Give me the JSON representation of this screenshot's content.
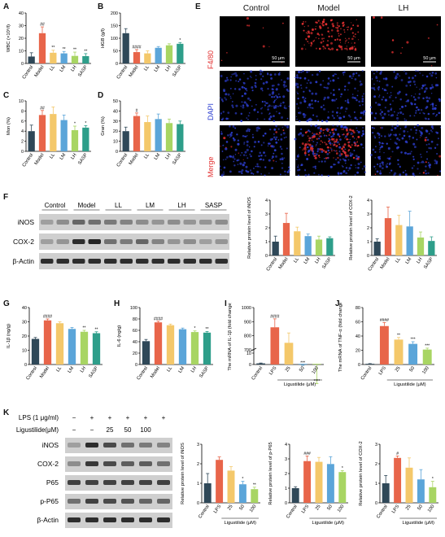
{
  "colors": {
    "control": "#2f4858",
    "model": "#e8654a",
    "ll": "#f4c86a",
    "lm": "#5ba5d9",
    "lh": "#a8d563",
    "sasp": "#2e9e8a",
    "lps": "#e8654a",
    "c25": "#f4c86a",
    "c50": "#5ba5d9",
    "c100": "#a8d563",
    "red_stain": "#e33030",
    "blue_stain": "#2d3fd1"
  },
  "panels": {
    "A": "A",
    "B": "B",
    "C": "C",
    "D": "D",
    "E": "E",
    "F": "F",
    "G": "G",
    "H": "H",
    "I": "I",
    "J": "J",
    "K": "K"
  },
  "microscopy": {
    "columns": [
      "Control",
      "Model",
      "LH"
    ],
    "rows": [
      "F4/80",
      "DAPI",
      "Merge"
    ],
    "scale_bar": "50 μm"
  },
  "blot_F": {
    "lanes": [
      "Control",
      "Model",
      "LL",
      "LM",
      "LH",
      "SASP"
    ],
    "rows": [
      "iNOS",
      "COX-2",
      "β-Actin"
    ]
  },
  "blot_K": {
    "treat_rows": [
      {
        "label": "LPS (1 μg/ml)",
        "values": [
          "−",
          "+",
          "+",
          "+",
          "+",
          "+"
        ]
      },
      {
        "label": "Ligustilide(μM)",
        "values": [
          "−",
          "−",
          "25",
          "50",
          "100",
          ""
        ]
      }
    ],
    "rows": [
      "iNOS",
      "COX-2",
      "P65",
      "p-P65",
      "β-Actin"
    ]
  },
  "chart_data": [
    {
      "id": "A",
      "type": "bar",
      "ylabel": "WBC (×10⁹/l)",
      "categories": [
        "Control",
        "Model",
        "LL",
        "LM",
        "LH",
        "SASP"
      ],
      "values": [
        5.5,
        24,
        8.5,
        8,
        6,
        5.8
      ],
      "errors": [
        3,
        5,
        2,
        1.5,
        3,
        2
      ],
      "ylim": [
        0,
        40
      ],
      "yticks": [
        0,
        10,
        20,
        30,
        40
      ],
      "sig": [
        "",
        "##",
        "**",
        "**",
        "**",
        "**"
      ]
    },
    {
      "id": "B",
      "type": "bar",
      "ylabel": "HGB (g/l)",
      "categories": [
        "Control",
        "Model",
        "LL",
        "LM",
        "LH",
        "SASP"
      ],
      "values": [
        120,
        45,
        40,
        62,
        72,
        78
      ],
      "errors": [
        18,
        10,
        10,
        5,
        6,
        5
      ],
      "ylim": [
        0,
        200
      ],
      "yticks": [
        0,
        50,
        100,
        150,
        200
      ],
      "sig": [
        "",
        "####",
        "",
        "",
        "",
        "*"
      ]
    },
    {
      "id": "C",
      "type": "bar",
      "ylabel": "Mon (%)",
      "categories": [
        "Control",
        "Model",
        "LL",
        "LM",
        "LH",
        "SASP"
      ],
      "values": [
        4,
        7.2,
        7.4,
        6.2,
        4.2,
        4.7
      ],
      "errors": [
        1.2,
        0.9,
        1.4,
        1,
        0.8,
        0.4
      ],
      "ylim": [
        0,
        10
      ],
      "yticks": [
        0,
        2,
        4,
        6,
        8,
        10
      ],
      "sig": [
        "",
        "##",
        "",
        "",
        "*",
        "*"
      ]
    },
    {
      "id": "D",
      "type": "bar",
      "ylabel": "Gran (%)",
      "categories": [
        "Control",
        "Model",
        "LL",
        "LM",
        "LH",
        "SASP"
      ],
      "values": [
        20,
        35,
        29,
        32,
        28,
        27
      ],
      "errors": [
        4,
        3,
        6,
        5,
        4,
        3
      ],
      "ylim": [
        0,
        50
      ],
      "yticks": [
        0,
        10,
        20,
        30,
        40,
        50
      ],
      "sig": [
        "",
        "#",
        "",
        "",
        "",
        ""
      ]
    },
    {
      "id": "F1",
      "type": "bar",
      "ylabel": "Relative protein level of iNOS",
      "categories": [
        "Control",
        "Model",
        "LL",
        "LM",
        "LH",
        "SASP"
      ],
      "values": [
        1,
        2.35,
        1.75,
        1.4,
        1.15,
        1.25
      ],
      "errors": [
        0.4,
        0.7,
        0.3,
        0.15,
        0.25,
        0.1
      ],
      "ylim": [
        0,
        4
      ],
      "yticks": [
        0,
        1,
        2,
        3,
        4
      ],
      "sig": [
        "",
        "",
        "",
        "",
        "",
        ""
      ]
    },
    {
      "id": "F2",
      "type": "bar",
      "ylabel": "Relative protein level of COX-2",
      "categories": [
        "Control",
        "Model",
        "LL",
        "LM",
        "LH",
        "SASP"
      ],
      "values": [
        1,
        2.7,
        2.2,
        2.1,
        1.3,
        1.05
      ],
      "errors": [
        0.2,
        0.8,
        0.7,
        1.1,
        0.4,
        0.3
      ],
      "ylim": [
        0,
        4
      ],
      "yticks": [
        0,
        1,
        2,
        3,
        4
      ],
      "sig": [
        "",
        "",
        "",
        "",
        "",
        ""
      ]
    },
    {
      "id": "G",
      "type": "bar",
      "ylabel": "IL-1β (ng/g)",
      "categories": [
        "Control",
        "Model",
        "LL",
        "LM",
        "LH",
        "SASP"
      ],
      "values": [
        18,
        31,
        29,
        25,
        23,
        22
      ],
      "errors": [
        1,
        1,
        1,
        1,
        1,
        1
      ],
      "ylim": [
        0,
        40
      ],
      "yticks": [
        0,
        10,
        20,
        30,
        40
      ],
      "sig": [
        "",
        "####",
        "",
        "",
        "**",
        "**"
      ]
    },
    {
      "id": "H",
      "type": "bar",
      "ylabel": "IL-6 (ng/g)",
      "categories": [
        "Control",
        "Model",
        "LL",
        "LM",
        "LH",
        "SASP"
      ],
      "values": [
        41,
        74,
        69,
        62,
        57,
        56
      ],
      "errors": [
        3,
        2,
        2,
        2,
        2,
        2
      ],
      "ylim": [
        0,
        100
      ],
      "yticks": [
        0,
        20,
        40,
        60,
        80,
        100
      ],
      "sig": [
        "",
        "####",
        "",
        "",
        "*",
        "**"
      ]
    },
    {
      "id": "I",
      "type": "bar",
      "ylabel": "The mRNA of IL-1β (fold change)",
      "xlabel": "Ligustilide (μM)",
      "categories": [
        "Control",
        "LPS",
        "25",
        "50",
        "100"
      ],
      "values": [
        1,
        860,
        750,
        560,
        440
      ],
      "errors": [
        0.3,
        60,
        70,
        30,
        20
      ],
      "ylim": [
        0,
        1000
      ],
      "yticks": [
        0,
        10,
        700,
        800,
        900,
        1000
      ],
      "sig": [
        "",
        "####",
        "",
        "***",
        "****"
      ]
    },
    {
      "id": "J",
      "type": "bar",
      "ylabel": "The mRNA of TNF-α (fold change)",
      "xlabel": "Ligustilide (μM)",
      "categories": [
        "Control",
        "LPS",
        "25",
        "50",
        "100"
      ],
      "values": [
        1,
        54,
        35,
        29,
        21
      ],
      "errors": [
        0.3,
        5,
        3,
        3,
        2
      ],
      "ylim": [
        0,
        80
      ],
      "yticks": [
        0,
        20,
        40,
        60,
        80
      ],
      "sig": [
        "",
        "####",
        "**",
        "***",
        "***"
      ]
    },
    {
      "id": "K1",
      "type": "bar",
      "ylabel": "Relative protein level of iNOS",
      "xlabel": "Ligustilide (μM)",
      "categories": [
        "Control",
        "LPS",
        "25",
        "50",
        "100"
      ],
      "values": [
        1,
        2.2,
        1.65,
        0.95,
        0.7
      ],
      "errors": [
        0.5,
        0.15,
        0.2,
        0.15,
        0.1
      ],
      "ylim": [
        0,
        3
      ],
      "yticks": [
        0,
        1,
        2,
        3
      ],
      "sig": [
        "",
        "",
        "",
        "*",
        "**"
      ]
    },
    {
      "id": "K2",
      "type": "bar",
      "ylabel": "Relative protein level of p-P65",
      "xlabel": "Ligustilide (μM)",
      "categories": [
        "Control",
        "LPS",
        "25",
        "50",
        "100"
      ],
      "values": [
        1,
        2.85,
        2.8,
        2.65,
        2.1
      ],
      "errors": [
        0.1,
        0.35,
        0.3,
        0.5,
        0.1
      ],
      "ylim": [
        0,
        4
      ],
      "yticks": [
        0,
        1,
        2,
        3,
        4
      ],
      "sig": [
        "",
        "###",
        "",
        "",
        "*"
      ]
    },
    {
      "id": "K3",
      "type": "bar",
      "ylabel": "Relative protein level of COX-2",
      "xlabel": "Ligustilide (μM)",
      "categories": [
        "Control",
        "LPS",
        "25",
        "50",
        "100"
      ],
      "values": [
        1,
        2.3,
        1.8,
        1.2,
        0.8
      ],
      "errors": [
        0.4,
        0.1,
        0.5,
        0.5,
        0.3
      ],
      "ylim": [
        0,
        3
      ],
      "yticks": [
        0,
        1,
        2,
        3
      ],
      "sig": [
        "",
        "#",
        "",
        "",
        "*"
      ]
    }
  ]
}
